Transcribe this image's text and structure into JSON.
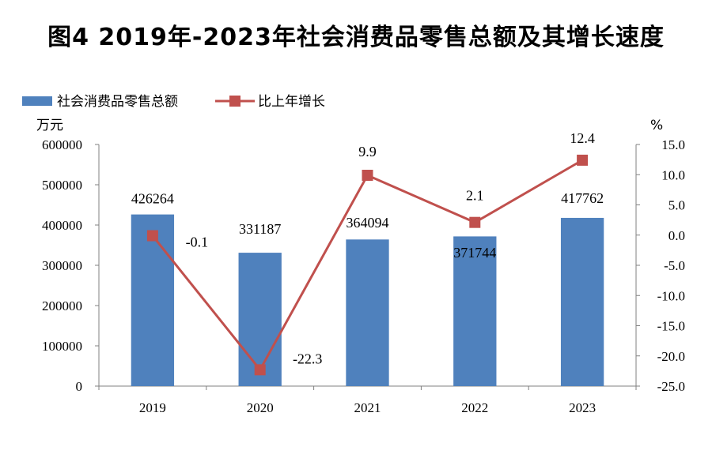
{
  "title": "图4   2019年-2023年社会消费品零售总额及其增长速度",
  "chart_data": {
    "type": "bar",
    "title": "图4   2019年-2023年社会消费品零售总额及其增长速度",
    "categories": [
      "2019",
      "2020",
      "2021",
      "2022",
      "2023"
    ],
    "series": [
      {
        "name": "社会消费品零售总额",
        "type": "bar",
        "axis": "left",
        "values": [
          426264,
          331187,
          364094,
          371744,
          417762
        ],
        "labels": [
          "426264",
          "331187",
          "364094",
          "371744",
          "417762"
        ],
        "color": "#4F81BD"
      },
      {
        "name": "比上年增长",
        "type": "line",
        "axis": "right",
        "values": [
          -0.1,
          -22.3,
          9.9,
          2.1,
          12.4
        ],
        "labels": [
          "-0.1",
          "-22.3",
          "9.9",
          "2.1",
          "12.4"
        ],
        "color": "#C0504D"
      }
    ],
    "y_left": {
      "unit": "万元",
      "ylim": [
        0,
        600000
      ],
      "ticks": [
        "0",
        "100000",
        "200000",
        "300000",
        "400000",
        "500000",
        "600000"
      ]
    },
    "y_right": {
      "unit": "%",
      "ylim": [
        -25,
        15
      ],
      "ticks": [
        "-25.0",
        "-20.0",
        "-15.0",
        "-10.0",
        "-5.0",
        "0.0",
        "5.0",
        "10.0",
        "15.0"
      ]
    },
    "grid": false,
    "legend_position": "top-left"
  }
}
